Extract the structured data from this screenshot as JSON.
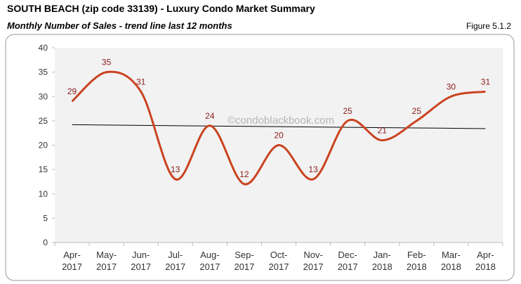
{
  "title": "SOUTH BEACH (zip code 33139) - Luxury Condo Market Summary",
  "subtitle": "Monthly Number of Sales - trend line last 12 months",
  "figure_label": "Figure 5.1.2",
  "chart_data": {
    "type": "line",
    "watermark": "©condoblackbook.com",
    "categories": [
      "Apr-2017",
      "May-2017",
      "Jun-2017",
      "Jul-2017",
      "Aug-2017",
      "Sep-2017",
      "Oct-2017",
      "Nov-2017",
      "Dec-2017",
      "Jan-2018",
      "Feb-2018",
      "Mar-2018",
      "Apr-2018"
    ],
    "series": [
      {
        "color": "#c9431f",
        "values": [
          29,
          35,
          31,
          13,
          24,
          12,
          20,
          13,
          25,
          21,
          25,
          30,
          31
        ]
      }
    ],
    "trend_line": {
      "color": "#000000",
      "values": [
        24.2,
        23.4
      ]
    },
    "ylim": [
      0,
      40
    ],
    "yticks": [
      0,
      5,
      10,
      15,
      20,
      25,
      30,
      35,
      40
    ],
    "label_color": "#8b1a1a",
    "plot_background": "#f2f2f2"
  }
}
